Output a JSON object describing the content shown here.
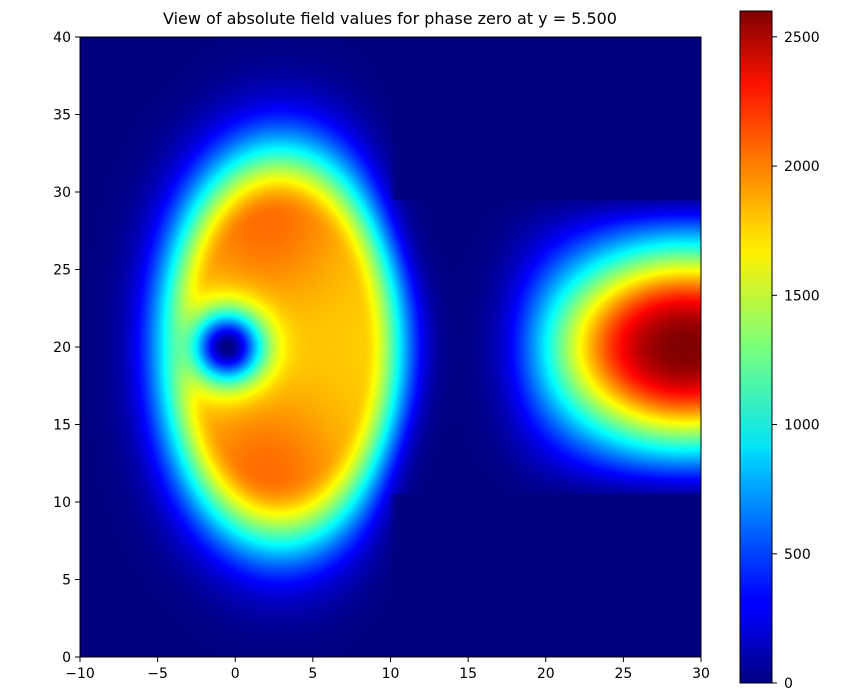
{
  "chart_data": {
    "type": "heatmap",
    "title": "View of absolute field values for phase zero at y = 5.500",
    "xlabel": "",
    "ylabel": "",
    "xlim": [
      -10,
      30
    ],
    "ylim": [
      0,
      40
    ],
    "x_ticks": [
      -10,
      -5,
      0,
      5,
      10,
      15,
      20,
      25,
      30
    ],
    "y_ticks": [
      0,
      5,
      10,
      15,
      20,
      25,
      30,
      35,
      40
    ],
    "colorbar": {
      "colormap": "jet",
      "range": [
        0,
        2600
      ],
      "ticks": [
        0,
        500,
        1000,
        1500,
        2000,
        2500
      ]
    },
    "features": [
      {
        "name": "left lobe upper maximum",
        "x": 2,
        "y": 28,
        "value": 1800
      },
      {
        "name": "left lobe lower maximum",
        "x": 2,
        "y": 12,
        "value": 1800
      },
      {
        "name": "left lobe minimum",
        "x": -0.5,
        "y": 20,
        "value": 0
      },
      {
        "name": "right region maximum",
        "x": 29,
        "y": 20,
        "value": 2600
      },
      {
        "name": "zero region",
        "x_range": [
          10,
          30
        ],
        "y_range": [
          0,
          40
        ],
        "value": 0
      }
    ],
    "grid": false,
    "legend": "colorbar-right"
  }
}
